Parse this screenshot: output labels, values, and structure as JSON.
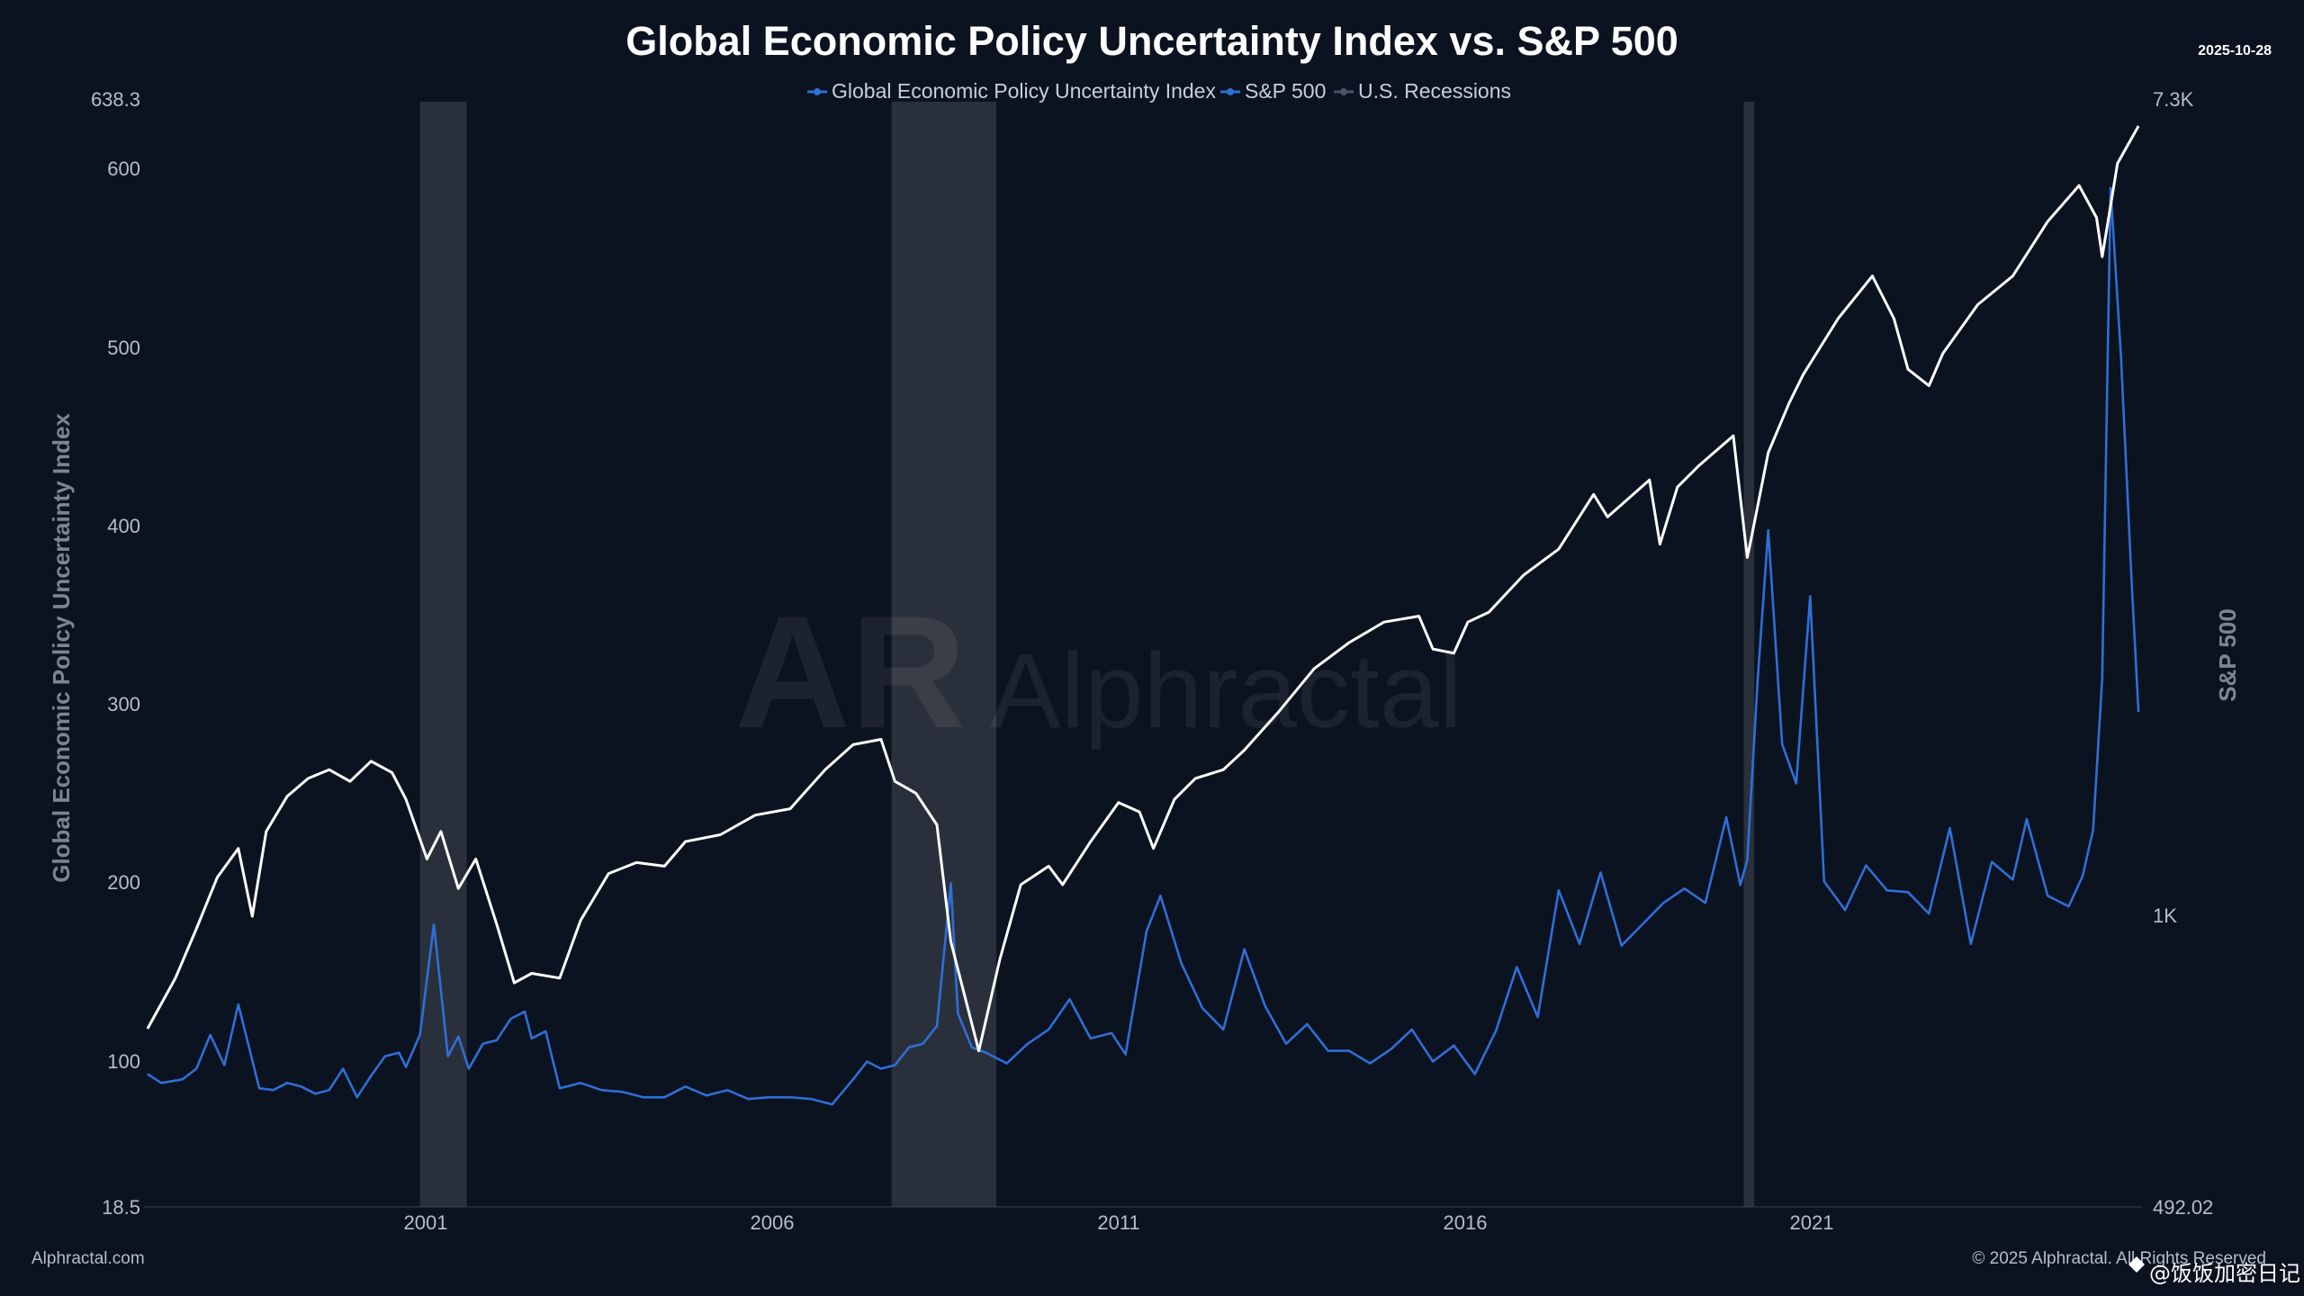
{
  "chart_data": {
    "type": "line",
    "title": "Global Economic Policy Uncertainty Index vs. S&P 500",
    "date": "2025-10-28",
    "xlabel": "",
    "ylabel_left": "Global Economic Policy Uncertainty Index",
    "ylabel_right": "S&P 500",
    "x_range": [
      1997.25,
      2025.85
    ],
    "ylim_left": [
      18.5,
      638.3
    ],
    "ylim_right": [
      492.02,
      7300
    ],
    "right_axis_scale": "log",
    "x_ticks": [
      "2001",
      "2006",
      "2011",
      "2016",
      "2021"
    ],
    "y_ticks_left": [
      "638.3",
      "600",
      "500",
      "400",
      "300",
      "200",
      "100",
      "18.5"
    ],
    "y_ticks_right": [
      "7.3K",
      "1K",
      "492.02"
    ],
    "legend": [
      {
        "label": "Global Economic Policy Uncertainty Index",
        "color": "#2f6fd6"
      },
      {
        "label": "S&P 500",
        "color": "#2f6fd6"
      },
      {
        "label": "U.S. Recessions",
        "color": "#4a5568"
      }
    ],
    "recessions": [
      [
        2001.2,
        2001.87
      ],
      [
        2007.95,
        2009.45
      ],
      [
        2020.15,
        2020.3
      ]
    ],
    "series": [
      {
        "name": "Global Economic Policy Uncertainty Index",
        "axis": "left",
        "color": "#2f6fd6",
        "x": [
          1997.3,
          1997.5,
          1997.8,
          1998.0,
          1998.2,
          1998.4,
          1998.6,
          1998.9,
          1999.1,
          1999.3,
          1999.5,
          1999.7,
          1999.9,
          2000.1,
          2000.3,
          2000.5,
          2000.7,
          2000.9,
          2001.0,
          2001.2,
          2001.4,
          2001.6,
          2001.75,
          2001.9,
          2002.1,
          2002.3,
          2002.5,
          2002.7,
          2002.8,
          2003.0,
          2003.2,
          2003.5,
          2003.8,
          2004.1,
          2004.4,
          2004.7,
          2005.0,
          2005.3,
          2005.6,
          2005.9,
          2006.2,
          2006.5,
          2006.8,
          2007.1,
          2007.4,
          2007.6,
          2007.8,
          2008.0,
          2008.2,
          2008.4,
          2008.6,
          2008.8,
          2008.9,
          2009.1,
          2009.3,
          2009.6,
          2009.9,
          2010.2,
          2010.5,
          2010.8,
          2011.1,
          2011.3,
          2011.6,
          2011.8,
          2012.1,
          2012.4,
          2012.7,
          2013.0,
          2013.3,
          2013.6,
          2013.9,
          2014.2,
          2014.5,
          2014.8,
          2015.1,
          2015.4,
          2015.7,
          2016.0,
          2016.3,
          2016.6,
          2016.9,
          2017.2,
          2017.5,
          2017.8,
          2018.1,
          2018.4,
          2018.7,
          2019.0,
          2019.3,
          2019.6,
          2019.9,
          2020.1,
          2020.2,
          2020.35,
          2020.5,
          2020.7,
          2020.9,
          2021.1,
          2021.3,
          2021.6,
          2021.9,
          2022.2,
          2022.5,
          2022.8,
          2023.1,
          2023.4,
          2023.7,
          2024.0,
          2024.2,
          2024.5,
          2024.8,
          2025.0,
          2025.15,
          2025.28,
          2025.4,
          2025.55,
          2025.7,
          2025.8
        ],
        "values": [
          93,
          88,
          90,
          96,
          115,
          98,
          132,
          85,
          84,
          88,
          86,
          82,
          84,
          96,
          80,
          92,
          103,
          105,
          97,
          115,
          177,
          103,
          114,
          96,
          110,
          112,
          124,
          128,
          113,
          117,
          85,
          88,
          84,
          83,
          80,
          80,
          86,
          81,
          84,
          79,
          80,
          80,
          79,
          76,
          90,
          100,
          96,
          98,
          108,
          110,
          120,
          200,
          127,
          108,
          105,
          99,
          110,
          118,
          135,
          113,
          116,
          104,
          173,
          193,
          155,
          130,
          118,
          163,
          131,
          110,
          121,
          106,
          106,
          99,
          107,
          118,
          100,
          109,
          93,
          117,
          153,
          125,
          196,
          166,
          206,
          165,
          177,
          189,
          197,
          189,
          237,
          199,
          213,
          315,
          398,
          278,
          256,
          361,
          201,
          185,
          210,
          196,
          195,
          183,
          231,
          166,
          212,
          202,
          236,
          193,
          187,
          204,
          230,
          315,
          590,
          495,
          370,
          296
        ],
        "tick_label": ""
      },
      {
        "name": "S&P 500",
        "axis": "right",
        "color": "#ffffff",
        "x": [
          1997.3,
          1997.7,
          1998.0,
          1998.3,
          1998.6,
          1998.8,
          1999.0,
          1999.3,
          1999.6,
          1999.9,
          2000.2,
          2000.5,
          2000.8,
          2001.0,
          2001.3,
          2001.5,
          2001.75,
          2002.0,
          2002.3,
          2002.55,
          2002.8,
          2003.2,
          2003.5,
          2003.9,
          2004.3,
          2004.7,
          2005.0,
          2005.5,
          2006.0,
          2006.5,
          2007.0,
          2007.4,
          2007.8,
          2008.0,
          2008.3,
          2008.6,
          2008.8,
          2008.95,
          2009.2,
          2009.5,
          2009.8,
          2010.2,
          2010.4,
          2010.8,
          2011.2,
          2011.5,
          2011.7,
          2012.0,
          2012.3,
          2012.7,
          2013.0,
          2013.5,
          2014.0,
          2014.5,
          2015.0,
          2015.5,
          2015.7,
          2016.0,
          2016.2,
          2016.5,
          2017.0,
          2017.5,
          2018.0,
          2018.2,
          2018.8,
          2018.95,
          2019.2,
          2019.5,
          2020.0,
          2020.2,
          2020.25,
          2020.5,
          2020.8,
          2021.0,
          2021.5,
          2021.99,
          2022.3,
          2022.5,
          2022.8,
          2023.0,
          2023.5,
          2024.0,
          2024.5,
          2024.95,
          2025.2,
          2025.28,
          2025.5,
          2025.8
        ],
        "values": [
          760,
          860,
          970,
          1100,
          1180,
          1000,
          1230,
          1340,
          1400,
          1430,
          1390,
          1460,
          1420,
          1330,
          1150,
          1230,
          1070,
          1150,
          980,
          850,
          870,
          860,
          990,
          1110,
          1140,
          1130,
          1200,
          1220,
          1280,
          1300,
          1430,
          1520,
          1540,
          1390,
          1350,
          1250,
          940,
          850,
          720,
          900,
          1080,
          1130,
          1080,
          1200,
          1320,
          1290,
          1180,
          1330,
          1400,
          1430,
          1500,
          1650,
          1830,
          1950,
          2050,
          2080,
          1920,
          1900,
          2050,
          2100,
          2300,
          2450,
          2800,
          2650,
          2900,
          2480,
          2850,
          3000,
          3230,
          2400,
          2500,
          3100,
          3500,
          3750,
          4300,
          4770,
          4300,
          3800,
          3650,
          3950,
          4450,
          4770,
          5450,
          5950,
          5500,
          5000,
          6280,
          6880
        ]
      }
    ]
  },
  "footer": {
    "source": "Alphractal.com",
    "copyright": "© 2025 Alphractal. All Rights Reserved",
    "watermark": "Alphractal",
    "overlay": "@饭饭加密日记"
  }
}
